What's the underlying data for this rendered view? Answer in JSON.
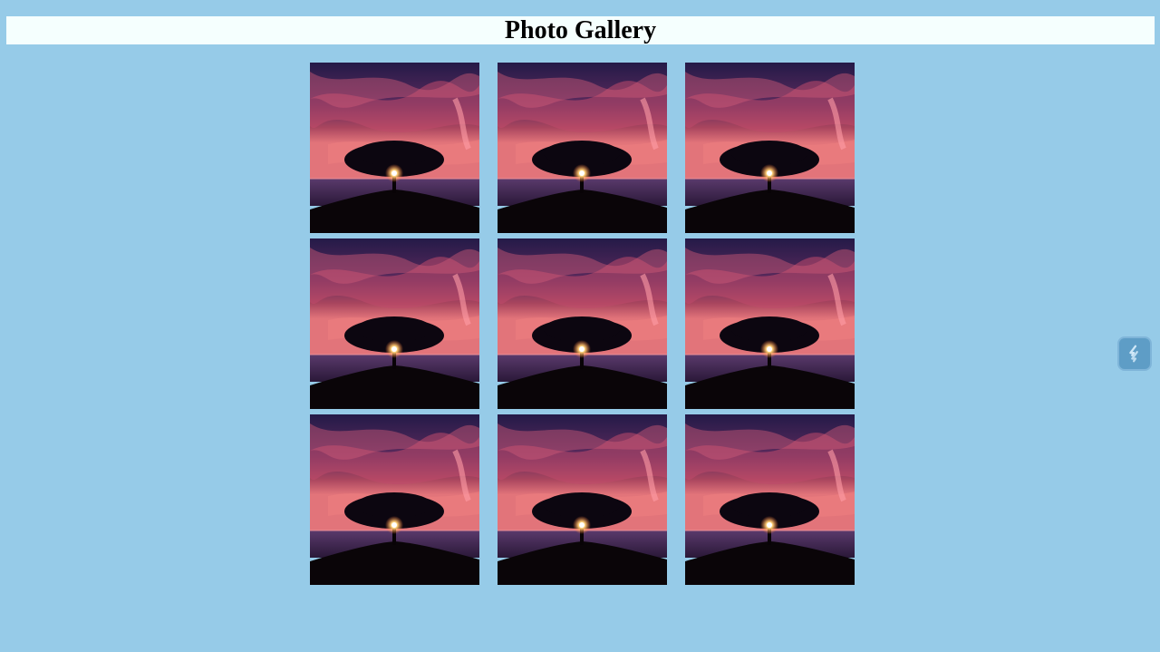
{
  "header": {
    "title": "Photo Gallery"
  },
  "gallery": {
    "photos": [
      {
        "subject": "tree-sunset"
      },
      {
        "subject": "tree-sunset"
      },
      {
        "subject": "tree-sunset"
      },
      {
        "subject": "tree-sunset"
      },
      {
        "subject": "tree-sunset"
      },
      {
        "subject": "tree-sunset"
      },
      {
        "subject": "tree-sunset"
      },
      {
        "subject": "tree-sunset"
      },
      {
        "subject": "tree-sunset"
      }
    ]
  },
  "widget": {
    "icon": "link-icon"
  },
  "colors": {
    "background": "#96cbe8",
    "header_bg": "#f5fffe"
  }
}
